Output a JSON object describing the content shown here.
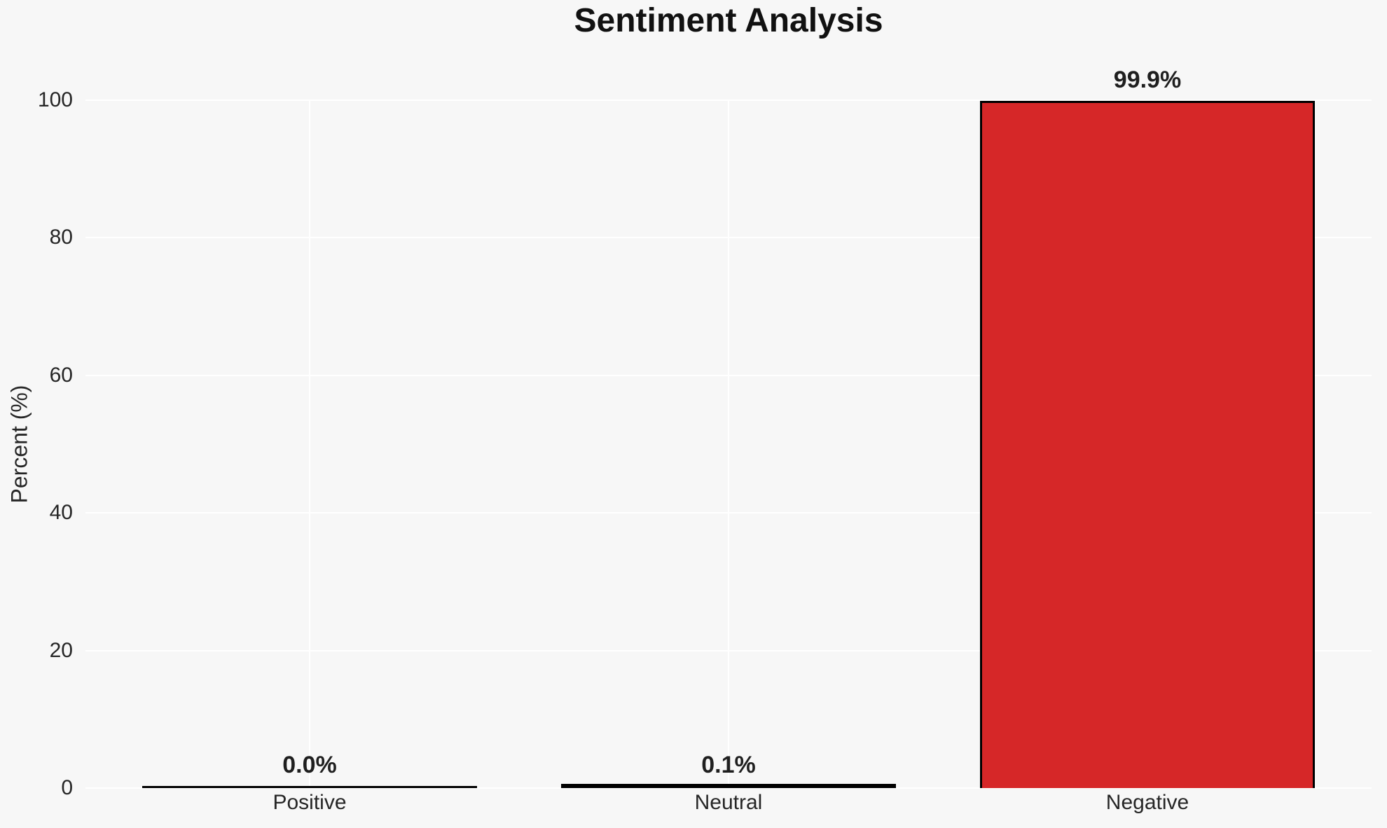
{
  "figure": {
    "background_color": "#f7f7f7",
    "grid_color": "#ffffff"
  },
  "chart_data": {
    "type": "bar",
    "title": "Sentiment Analysis",
    "categories": [
      "Positive",
      "Neutral",
      "Negative"
    ],
    "values": [
      0.0,
      0.1,
      99.9
    ],
    "value_labels": [
      "0.0%",
      "0.1%",
      "99.9%"
    ],
    "xlabel": "",
    "ylabel": "Percent (%)",
    "ylim": [
      0,
      100
    ],
    "yticks": [
      0,
      20,
      40,
      60,
      80,
      100
    ],
    "grid": true,
    "legend": false,
    "bar_color": "#d62728",
    "bar_edge_color": "#000000"
  }
}
